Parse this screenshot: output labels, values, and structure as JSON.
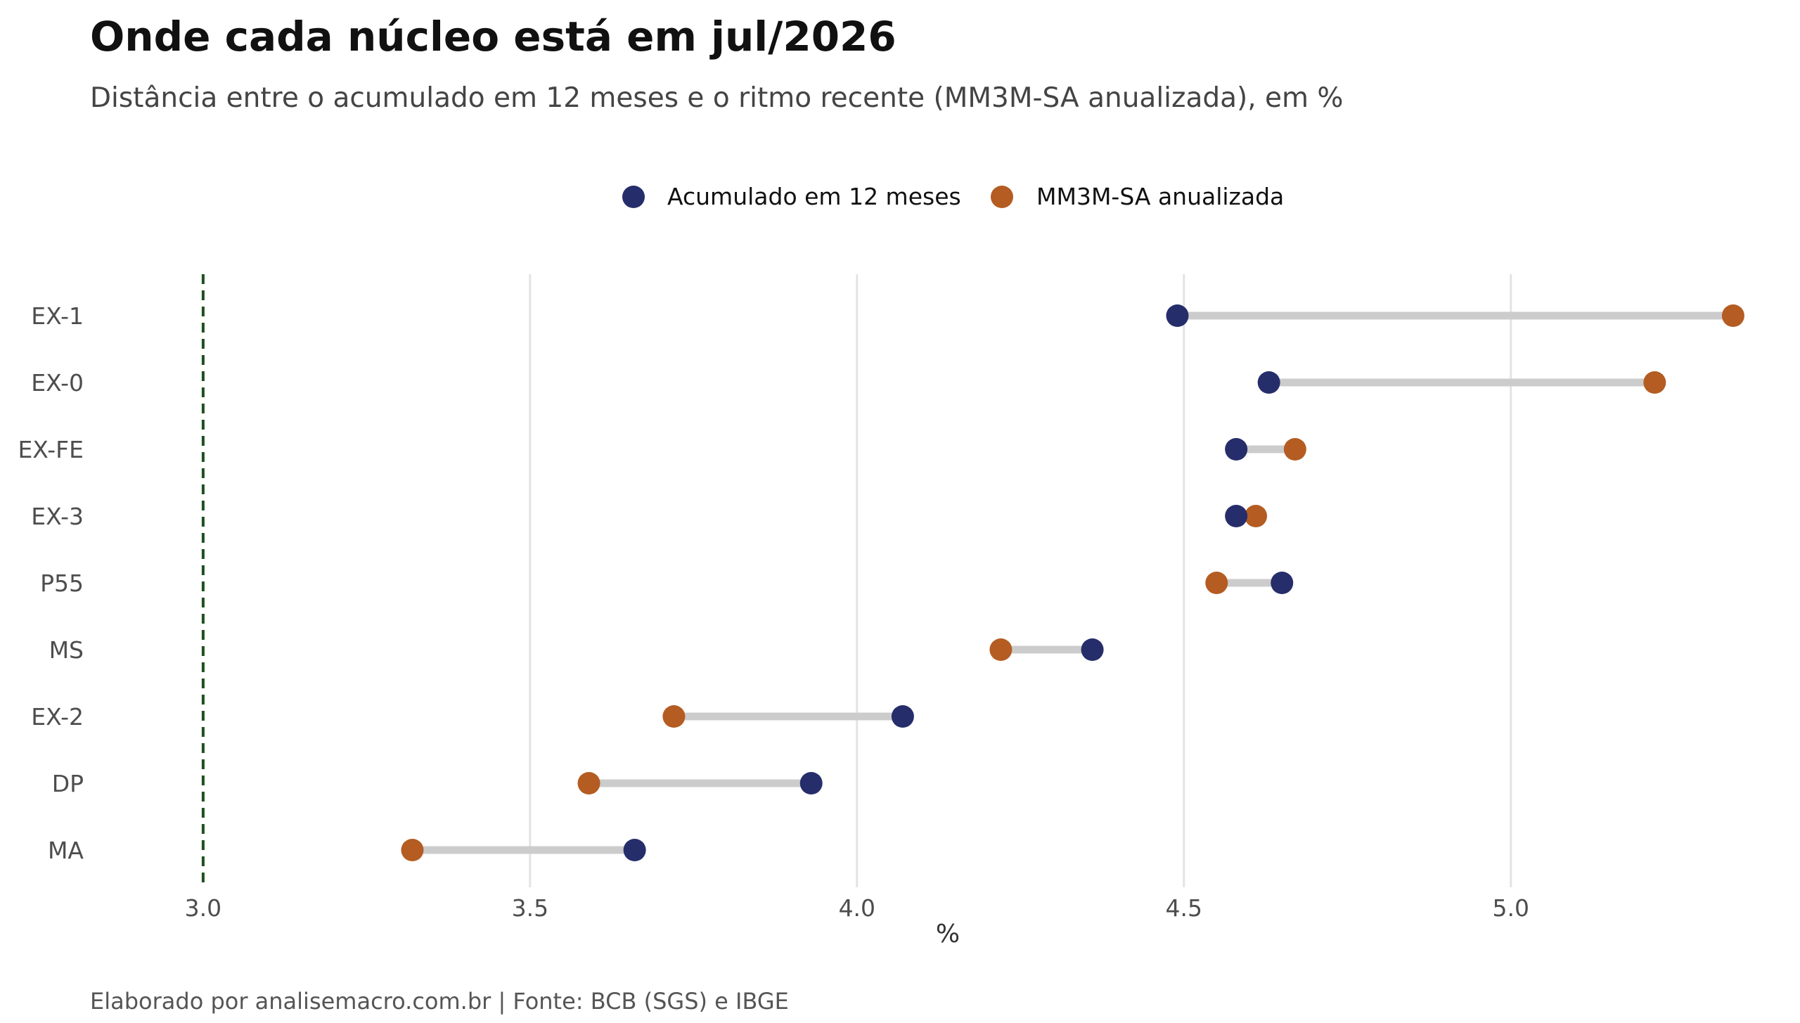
{
  "chart_data": {
    "type": "dumbbell",
    "title": "Onde cada núcleo está em jul/2026",
    "subtitle": "Distância entre o acumulado em 12 meses e o ritmo recente (MM3M-SA anualizada), em %",
    "xlabel": "%",
    "ylabel": "",
    "caption": "Elaborado por analisemacro.com.br | Fonte: BCB (SGS) e IBGE",
    "xlim": [
      2.87,
      5.41
    ],
    "xticks": [
      3.0,
      3.5,
      4.0,
      4.5,
      5.0
    ],
    "xtick_labels": [
      "3.0",
      "3.5",
      "4.0",
      "4.5",
      "5.0"
    ],
    "reference_line": {
      "x": 3.0,
      "style": "dashed",
      "color": "#1f4f1f"
    },
    "grid": "vertical major",
    "legend_position": "top-center",
    "categories": [
      "EX-1",
      "EX-0",
      "EX-FE",
      "EX-3",
      "P55",
      "MS",
      "EX-2",
      "DP",
      "MA"
    ],
    "series": [
      {
        "name": "Acumulado em 12 meses",
        "color": "#262d6b",
        "values": [
          4.49,
          4.63,
          4.58,
          4.58,
          4.65,
          4.36,
          4.07,
          3.93,
          3.66
        ]
      },
      {
        "name": "MM3M-SA anualizada",
        "color": "#b45c22",
        "values": [
          5.34,
          5.22,
          4.67,
          4.61,
          4.55,
          4.22,
          3.72,
          3.59,
          3.32
        ]
      }
    ],
    "segment_color": "#cccccc",
    "grid_color": "#e3e3e3"
  }
}
